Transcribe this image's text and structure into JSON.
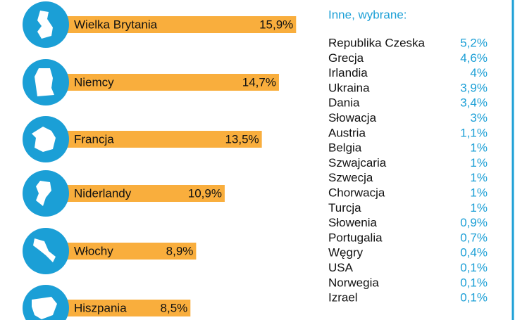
{
  "chart_data": {
    "type": "bar",
    "categories": [
      "Wielka Brytania",
      "Niemcy",
      "Francja",
      "Niderlandy",
      "Włochy",
      "Hiszpania"
    ],
    "values": [
      15.9,
      14.7,
      13.5,
      10.9,
      8.9,
      8.5
    ],
    "value_labels": [
      "15,9%",
      "14,7%",
      "13,5%",
      "10,9%",
      "8,9%",
      "8,5%"
    ],
    "color": "#f9ae3d",
    "icon_color": "#1b9fd6"
  },
  "list": {
    "title": "Inne, wybrane:",
    "rows": [
      [
        "Republika Czeska",
        "5,2%"
      ],
      [
        "Grecja",
        "4,6%"
      ],
      [
        "Irlandia",
        "4%"
      ],
      [
        "Ukraina",
        "3,9%"
      ],
      [
        "Dania",
        "3,4%"
      ],
      [
        "Słowacja",
        "3%"
      ],
      [
        "Austria",
        "1,1%"
      ],
      [
        "Belgia",
        "1%"
      ],
      [
        "Szwajcaria",
        "1%"
      ],
      [
        "Szwecja",
        "1%"
      ],
      [
        "Chorwacja",
        "1%"
      ],
      [
        "Turcja",
        "1%"
      ],
      [
        "Słowenia",
        "0,9%"
      ],
      [
        "Portugalia",
        "0,7%"
      ],
      [
        "Węgry",
        "0,4%"
      ],
      [
        "USA",
        "0,1%"
      ],
      [
        "Norwegia",
        "0,1%"
      ],
      [
        "Izrael",
        "0,1%"
      ]
    ]
  }
}
